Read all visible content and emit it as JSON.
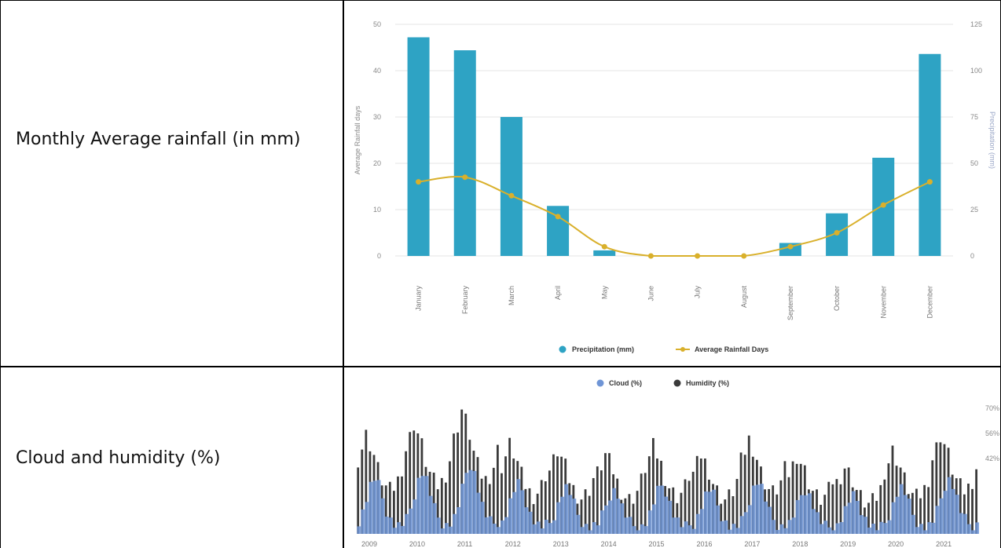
{
  "rows": [
    {
      "label": "Monthly Average rainfall (in mm)"
    },
    {
      "label": "Cloud and humidity (%)"
    }
  ],
  "colors": {
    "precipitation": "#2ea3c4",
    "rainfall_days": "#d9b02b",
    "cloud": "#6f95d6",
    "humidity": "#3a3a3a",
    "grid": "#e6e6e6"
  },
  "chart_data": [
    {
      "type": "bar",
      "categories": [
        "January",
        "February",
        "March",
        "April",
        "May",
        "June",
        "July",
        "August",
        "September",
        "October",
        "November",
        "December"
      ],
      "series": [
        {
          "name": "Precipitation (mm)",
          "type": "bar",
          "axis": "right",
          "values": [
            118,
            111,
            75,
            27,
            3,
            0,
            0,
            0,
            7,
            23,
            53,
            109
          ]
        },
        {
          "name": "Average Rainfall Days",
          "type": "line",
          "axis": "left",
          "values": [
            16,
            17,
            13,
            8.5,
            2,
            0,
            0,
            0,
            2,
            5,
            11,
            16
          ]
        }
      ],
      "left_axis": {
        "label": "Average Rainfall days",
        "ylim": [
          0,
          50
        ],
        "ticks": [
          "0",
          "10",
          "20",
          "30",
          "40",
          "50"
        ]
      },
      "right_axis": {
        "label": "Precipitation (mm)",
        "ylim": [
          0,
          125
        ],
        "ticks": [
          "0",
          "25",
          "50",
          "75",
          "100",
          "125"
        ]
      },
      "legend": "bottom-center",
      "grid": true
    },
    {
      "type": "bar",
      "series": [
        {
          "name": "Cloud (%)",
          "color": "#6f95d6"
        },
        {
          "name": "Humidity (%)",
          "color": "#3a3a3a"
        }
      ],
      "x_ticks": [
        "2009",
        "2010",
        "2011",
        "2012",
        "2013",
        "2014",
        "2015",
        "2016",
        "2017",
        "2018",
        "2019",
        "2020",
        "2021"
      ],
      "y_ticks": [
        "70%",
        "56%",
        "42%"
      ],
      "cloud_profile": [
        8,
        14,
        22,
        30,
        34,
        30,
        22,
        14,
        9,
        6,
        5,
        6
      ],
      "humidity_profile": [
        42,
        48,
        55,
        50,
        44,
        36,
        30,
        26,
        24,
        26,
        30,
        37
      ],
      "year_peaks_humidity": [
        50,
        56,
        63,
        45,
        42,
        40,
        44,
        40,
        48,
        40,
        34,
        42,
        50
      ],
      "legend": "top-center",
      "grid": false
    }
  ]
}
